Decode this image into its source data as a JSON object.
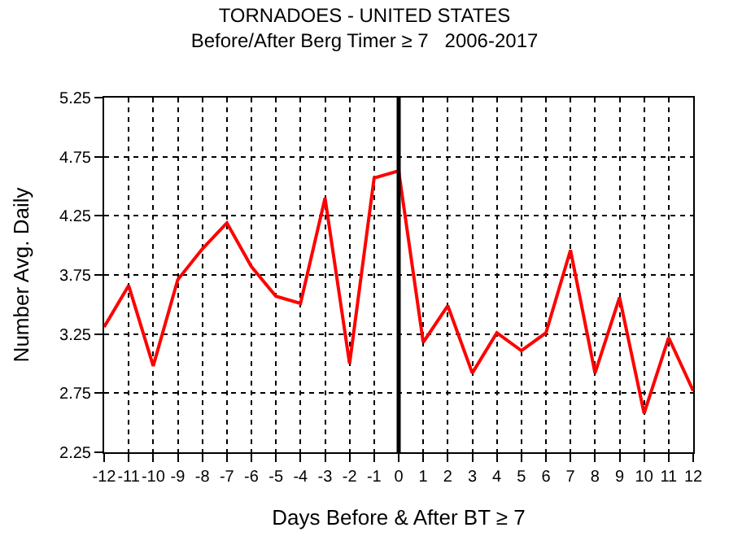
{
  "chart_data": {
    "type": "line",
    "title": "TORNADOES - UNITED STATES",
    "subtitle": "Before/After Berg Timer ≥ 7   2006-2017",
    "xlabel": "Days Before & After BT ≥ 7",
    "ylabel": "Number Avg. Daily",
    "x": [
      -12,
      -11,
      -10,
      -9,
      -8,
      -7,
      -6,
      -5,
      -4,
      -3,
      -2,
      -1,
      0,
      1,
      2,
      3,
      4,
      5,
      6,
      7,
      8,
      9,
      10,
      11,
      12
    ],
    "series": [
      {
        "color": "#ff0000",
        "values": [
          3.31,
          3.66,
          2.98,
          3.71,
          3.97,
          4.19,
          3.82,
          3.57,
          3.51,
          4.4,
          3.0,
          4.57,
          4.63,
          3.18,
          3.49,
          2.92,
          3.26,
          3.11,
          3.26,
          3.96,
          2.92,
          3.56,
          2.58,
          3.22,
          2.77
        ]
      }
    ],
    "xlim": [
      -12,
      12
    ],
    "xticks": [
      -12,
      -11,
      -10,
      -9,
      -8,
      -7,
      -6,
      -5,
      -4,
      -3,
      -2,
      -1,
      0,
      1,
      2,
      3,
      4,
      5,
      6,
      7,
      8,
      9,
      10,
      11,
      12
    ],
    "ylim": [
      2.25,
      5.25
    ],
    "yticks": [
      2.25,
      2.75,
      3.25,
      3.75,
      4.25,
      4.75,
      5.25
    ],
    "ref_lines": [
      {
        "axis": "x",
        "value": 0,
        "color": "#000000",
        "line_style": "solid"
      }
    ],
    "grid": true,
    "marker": "none",
    "line_style": "solid"
  }
}
